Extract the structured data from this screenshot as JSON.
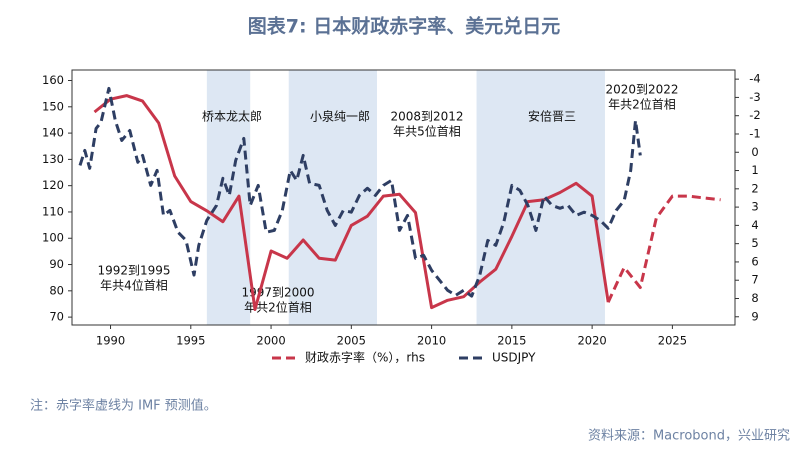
{
  "chart_data": {
    "type": "line",
    "title": "图表7:    日本财政赤字率、美元兑日元",
    "note": "注：赤字率虚线为 IMF 预测值。",
    "source": "资料来源：Macrobond，兴业研究",
    "xlim": [
      1987.6,
      2028.9
    ],
    "xticks": [
      1990,
      1995,
      2000,
      2005,
      2010,
      2015,
      2020,
      2025
    ],
    "ylim": [
      67,
      164
    ],
    "yticks": [
      70,
      80,
      90,
      100,
      110,
      120,
      130,
      140,
      150,
      160
    ],
    "y2lim": [
      9.45,
      -4.5
    ],
    "y2ticks": [
      -4,
      -3,
      -2,
      -1,
      0,
      1,
      2,
      3,
      4,
      5,
      6,
      7,
      8,
      9
    ],
    "shaded": [
      [
        1996.0,
        1998.7
      ],
      [
        2001.1,
        2006.6
      ],
      [
        2012.8,
        2020.8
      ]
    ],
    "annotations": [
      {
        "lines": [
          "桥本龙太郎"
        ]
      },
      {
        "lines": [
          "小泉纯一郎"
        ]
      },
      {
        "lines": [
          "2008到2012",
          "年共5位首相"
        ]
      },
      {
        "lines": [
          "安倍晋三"
        ]
      },
      {
        "lines": [
          "2020到2022",
          "年共2位首相"
        ]
      },
      {
        "lines": [
          "1992到1995",
          "年共4位首相"
        ]
      },
      {
        "lines": [
          "1997到2000",
          "年共2位首相"
        ]
      }
    ],
    "series": [
      {
        "name": "财政赤字率（%），rhs",
        "color": "#c8364a",
        "axis": "y2",
        "dashed_from": 2021,
        "x": [
          1989,
          1990,
          1991,
          1992,
          1993,
          1994,
          1995,
          1996,
          1997,
          1998,
          1999,
          2000,
          2001,
          2002,
          2003,
          2004,
          2005,
          2006,
          2007,
          2008,
          2009,
          2010,
          2011,
          2012,
          2013,
          2014,
          2015,
          2016,
          2017,
          2018,
          2019,
          2020,
          2021,
          2022,
          2023,
          2024,
          2025,
          2026,
          2027,
          2028
        ],
        "values": [
          -2.2,
          -2.9,
          -3.1,
          -2.8,
          -1.6,
          1.3,
          2.7,
          3.2,
          3.8,
          2.4,
          8.6,
          5.4,
          5.8,
          4.8,
          5.8,
          5.9,
          4.0,
          3.5,
          2.4,
          2.3,
          3.3,
          8.5,
          8.1,
          7.9,
          7.1,
          6.4,
          4.6,
          2.7,
          2.6,
          2.2,
          1.7,
          2.4,
          8.2,
          6.3,
          7.4,
          3.6,
          2.4,
          2.4,
          2.5,
          2.6
        ]
      },
      {
        "name": "USDJPY",
        "color": "#2e3e63",
        "x": [
          1988.1,
          1988.4,
          1988.7,
          1989.1,
          1989.4,
          1989.9,
          1990.3,
          1990.7,
          1991.2,
          1991.7,
          1992.0,
          1992.5,
          1992.9,
          1993.3,
          1993.7,
          1994.2,
          1994.7,
          1995.2,
          1995.5,
          1996.0,
          1996.6,
          1997.0,
          1997.4,
          1997.8,
          1998.3,
          1998.7,
          1999.2,
          1999.7,
          2000.2,
          2000.7,
          2001.2,
          2001.6,
          2002.0,
          2002.4,
          2003.0,
          2003.5,
          2004.0,
          2004.5,
          2005.0,
          2005.5,
          2006.0,
          2006.5,
          2007.0,
          2007.5,
          2008.0,
          2008.5,
          2009.0,
          2009.5,
          2010.0,
          2010.5,
          2011.0,
          2011.5,
          2012.0,
          2012.5,
          2013.0,
          2013.5,
          2014.0,
          2014.5,
          2015.0,
          2015.5,
          2016.0,
          2016.5,
          2017.0,
          2017.5,
          2018.0,
          2018.5,
          2019.0,
          2019.5,
          2020.0,
          2020.5,
          2021.0,
          2021.5,
          2022.0,
          2022.4,
          2022.7,
          2023.0
        ],
        "values": [
          127.7,
          133.4,
          126.6,
          141.8,
          144.0,
          157.0,
          144.8,
          137.2,
          141.0,
          128.9,
          131.5,
          120.1,
          125.8,
          108.7,
          110.6,
          102.3,
          99.2,
          86.0,
          97.3,
          106.8,
          112.5,
          122.8,
          116.3,
          129.6,
          138.0,
          112.5,
          120.1,
          102.3,
          103.0,
          110.6,
          125.8,
          122.0,
          131.5,
          120.9,
          120.1,
          110.6,
          104.9,
          110.6,
          109.9,
          116.3,
          119.0,
          116.3,
          120.1,
          122.0,
          103.0,
          108.7,
          92.4,
          93.5,
          87.8,
          84.0,
          80.2,
          78.3,
          80.2,
          78.0,
          86.0,
          99.2,
          97.3,
          106.1,
          120.1,
          118.2,
          112.5,
          103.0,
          116.0,
          112.5,
          111.4,
          112.5,
          108.7,
          109.9,
          108.7,
          106.8,
          103.8,
          110.6,
          114.4,
          125.8,
          144.8,
          131.5
        ]
      }
    ]
  }
}
